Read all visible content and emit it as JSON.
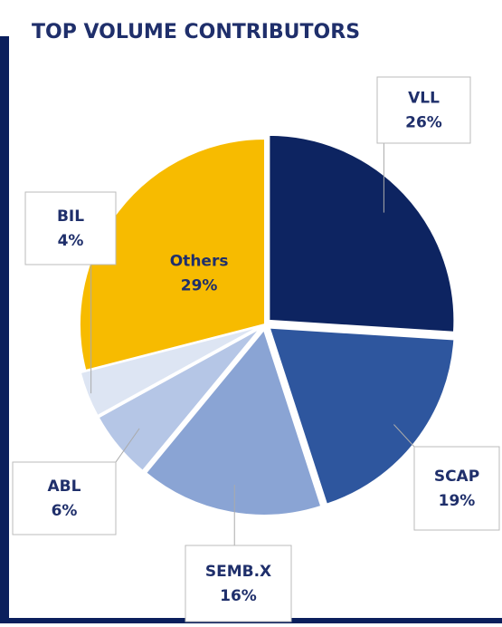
{
  "chart_data": {
    "type": "pie",
    "title": "TOP VOLUME CONTRIBUTORS",
    "categories": [
      "VLL",
      "SCAP",
      "SEMB.X",
      "ABL",
      "BIL",
      "Others"
    ],
    "values": [
      26,
      19,
      16,
      6,
      4,
      29
    ],
    "value_labels": [
      "26%",
      "19%",
      "16%",
      "6%",
      "4%",
      "29%"
    ],
    "colors": [
      "#0d2461",
      "#2e569e",
      "#8aa4d4",
      "#b5c6e6",
      "#dde5f3",
      "#f7bb00"
    ]
  }
}
